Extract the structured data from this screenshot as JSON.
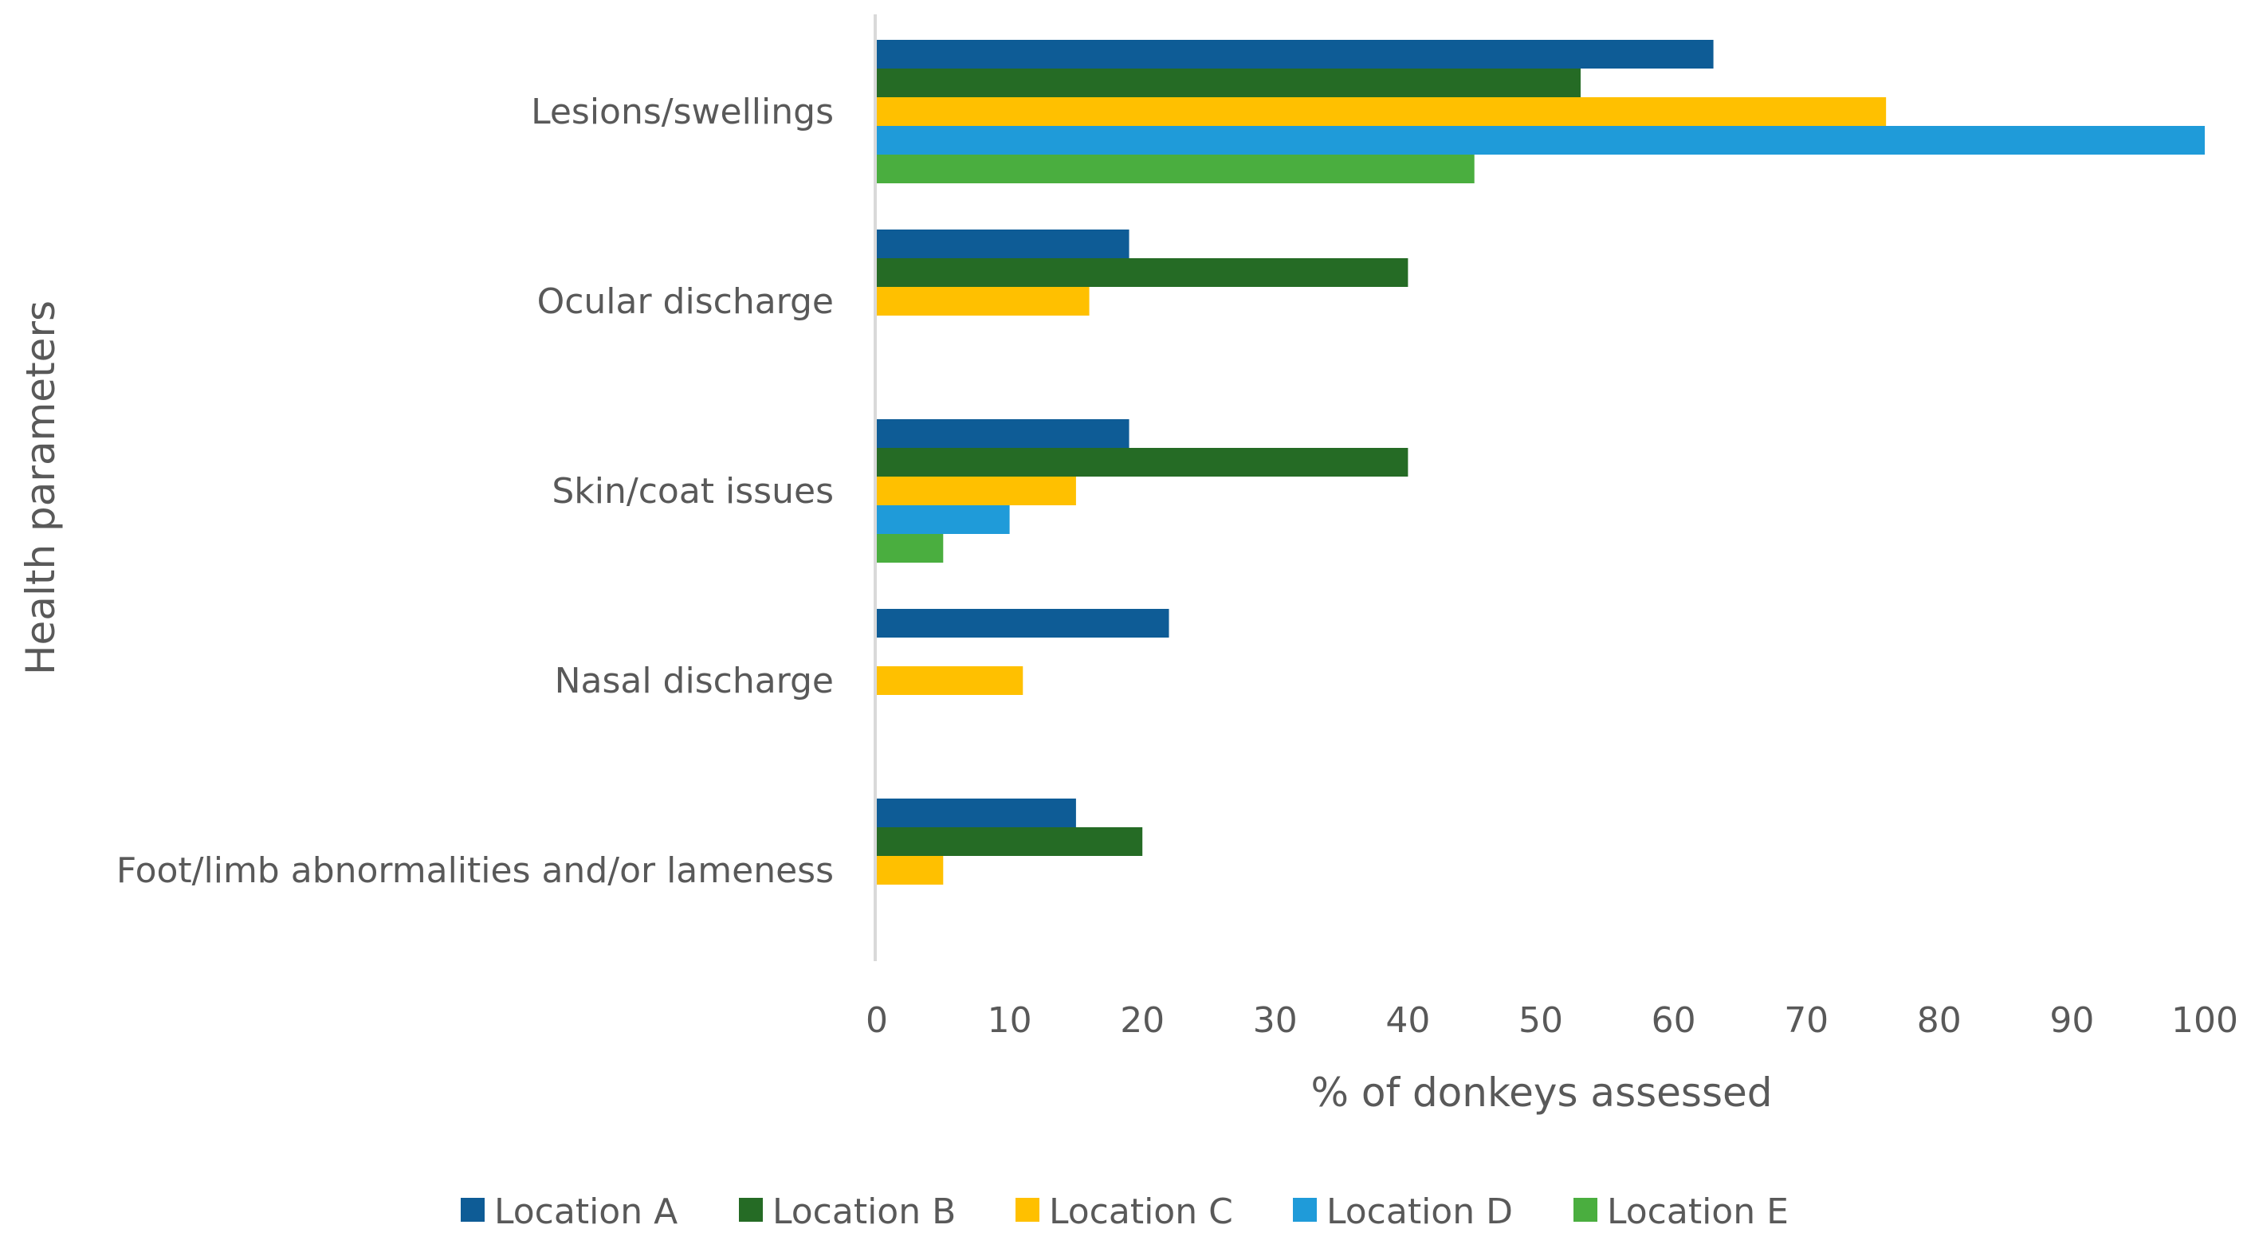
{
  "chart_data": {
    "type": "bar",
    "orientation": "horizontal",
    "title": "",
    "xlabel": "% of donkeys assessed",
    "ylabel": "Health parameters",
    "xlim": [
      0,
      100
    ],
    "xticks": [
      0,
      10,
      20,
      30,
      40,
      50,
      60,
      70,
      80,
      90,
      100
    ],
    "categories": [
      "Lesions/swellings",
      "Ocular discharge",
      "Skin/coat issues",
      "Nasal discharge",
      "Foot/limb abnormalities and/or lameness"
    ],
    "series": [
      {
        "name": "Location A",
        "color": "#0E5C96",
        "values": [
          63,
          19,
          19,
          22,
          15
        ]
      },
      {
        "name": "Location B",
        "color": "#256B25",
        "values": [
          53,
          40,
          40,
          0,
          20
        ]
      },
      {
        "name": "Location C",
        "color": "#FFC000",
        "values": [
          76,
          16,
          15,
          11,
          5
        ]
      },
      {
        "name": "Location D",
        "color": "#1F9BD9",
        "values": [
          100,
          0,
          10,
          0,
          0
        ]
      },
      {
        "name": "Location E",
        "color": "#4AAE3F",
        "values": [
          45,
          0,
          5,
          0,
          0
        ]
      }
    ],
    "legend_position": "bottom",
    "grid": false
  }
}
